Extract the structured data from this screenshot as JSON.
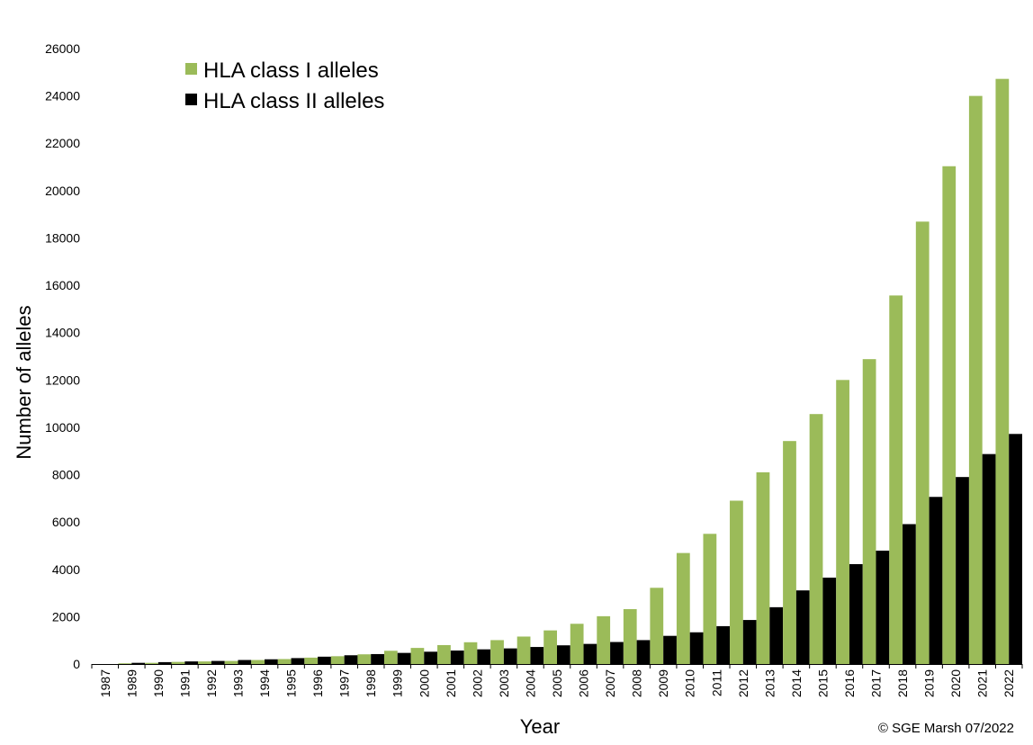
{
  "chart_data": {
    "type": "bar",
    "categories": [
      "1987",
      "1989",
      "1990",
      "1991",
      "1992",
      "1993",
      "1994",
      "1995",
      "1996",
      "1997",
      "1998",
      "1999",
      "2000",
      "2001",
      "2002",
      "2003",
      "2004",
      "2005",
      "2006",
      "2007",
      "2008",
      "2009",
      "2010",
      "2011",
      "2012",
      "2013",
      "2014",
      "2015",
      "2016",
      "2017",
      "2018",
      "2019",
      "2020",
      "2021",
      "2022"
    ],
    "series": [
      {
        "name": "HLA class I alleles",
        "color": "#9BBB59",
        "values": [
          0,
          30,
          50,
          90,
          110,
          130,
          170,
          210,
          270,
          330,
          410,
          560,
          680,
          800,
          920,
          1010,
          1160,
          1420,
          1700,
          2020,
          2320,
          3220,
          4690,
          5500,
          6900,
          8100,
          9420,
          10560,
          12000,
          12880,
          15570,
          18690,
          21030,
          24000,
          24720
        ]
      },
      {
        "name": "HLA class II alleles",
        "color": "#000000",
        "values": [
          0,
          50,
          80,
          110,
          130,
          170,
          200,
          250,
          310,
          370,
          420,
          470,
          520,
          570,
          620,
          660,
          720,
          790,
          850,
          930,
          1010,
          1190,
          1340,
          1600,
          1860,
          2400,
          3110,
          3650,
          4220,
          4790,
          5910,
          7060,
          7900,
          8870,
          9720
        ]
      }
    ],
    "xlabel": "Year",
    "ylabel": "Number of alleles",
    "ylim": [
      0,
      26000
    ],
    "yticks": [
      0,
      2000,
      4000,
      6000,
      8000,
      10000,
      12000,
      14000,
      16000,
      18000,
      20000,
      22000,
      24000,
      26000
    ],
    "grid": false,
    "legend_position": "top-left",
    "credit": "© SGE Marsh 07/2022"
  }
}
